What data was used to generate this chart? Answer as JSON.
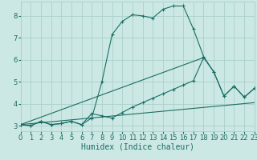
{
  "xlabel": "Humidex (Indice chaleur)",
  "bg_color": "#cce8e4",
  "grid_color": "#aacfca",
  "line_color": "#1a6e64",
  "x_ticks": [
    0,
    1,
    2,
    3,
    4,
    5,
    6,
    7,
    8,
    9,
    10,
    11,
    12,
    13,
    14,
    15,
    16,
    17,
    18,
    19,
    20,
    21,
    22,
    23
  ],
  "y_ticks": [
    3,
    4,
    5,
    6,
    7,
    8
  ],
  "xlim": [
    0,
    23
  ],
  "ylim": [
    2.75,
    8.65
  ],
  "series1_x": [
    0,
    1,
    2,
    3,
    4,
    5,
    6,
    7,
    8,
    9,
    10,
    11,
    12,
    13,
    14,
    15,
    16,
    17,
    18,
    19,
    20,
    21,
    22,
    23
  ],
  "series1_y": [
    3.05,
    3.0,
    3.2,
    3.05,
    3.1,
    3.2,
    3.05,
    3.35,
    5.0,
    7.15,
    7.75,
    8.05,
    8.0,
    7.9,
    8.3,
    8.45,
    8.45,
    7.4,
    6.15,
    5.45,
    4.35,
    4.8,
    4.3,
    4.7
  ],
  "series2_x": [
    0,
    1,
    2,
    3,
    4,
    5,
    6,
    7,
    8,
    9,
    10,
    11,
    12,
    13,
    14,
    15,
    16,
    17,
    18,
    19,
    20,
    21,
    22,
    23
  ],
  "series2_y": [
    3.05,
    3.0,
    3.2,
    3.05,
    3.1,
    3.2,
    3.05,
    3.55,
    3.45,
    3.35,
    3.6,
    3.85,
    4.05,
    4.25,
    4.45,
    4.65,
    4.85,
    5.05,
    6.1,
    5.45,
    4.35,
    4.8,
    4.3,
    4.7
  ],
  "series3_x": [
    0,
    18
  ],
  "series3_y": [
    3.05,
    6.1
  ],
  "series4_x": [
    0,
    23
  ],
  "series4_y": [
    3.05,
    4.05
  ],
  "xlabel_fontsize": 7,
  "tick_fontsize": 6
}
